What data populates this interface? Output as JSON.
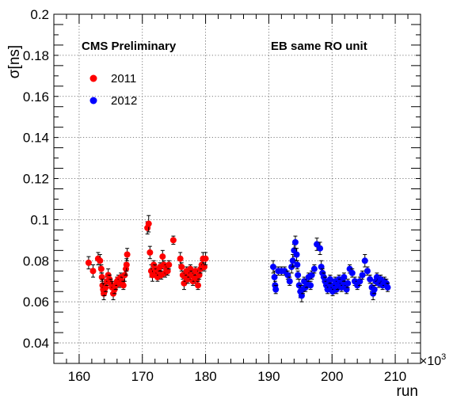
{
  "chart_data": {
    "type": "scatter",
    "title": "",
    "xlabel": "run",
    "ylabel": "σ[ns]",
    "x_multiplier_label": "×10",
    "x_multiplier_exp": "3",
    "xlim": [
      156,
      214
    ],
    "ylim": [
      0.03,
      0.2
    ],
    "x_ticks": [
      160,
      170,
      180,
      190,
      200,
      210
    ],
    "y_ticks": [
      0.04,
      0.06,
      0.08,
      0.1,
      0.12,
      0.14,
      0.16,
      0.18,
      0.2
    ],
    "x_tick_labels": [
      "160",
      "170",
      "180",
      "190",
      "200",
      "210"
    ],
    "y_tick_labels": [
      "0.04",
      "0.06",
      "0.08",
      "0.1",
      "0.12",
      "0.14",
      "0.16",
      "0.18",
      "0.2"
    ],
    "grid": true,
    "legend_position": "top-left",
    "annotations": [
      "CMS Preliminary",
      "EB same RO unit"
    ],
    "series": [
      {
        "name": "2011",
        "color": "#ff0000",
        "points": [
          [
            161.5,
            0.079,
            0.003
          ],
          [
            162.2,
            0.075,
            0.003
          ],
          [
            163.0,
            0.081,
            0.003
          ],
          [
            163.3,
            0.08,
            0.003
          ],
          [
            163.5,
            0.076,
            0.002
          ],
          [
            163.6,
            0.072,
            0.002
          ],
          [
            163.7,
            0.068,
            0.003
          ],
          [
            163.8,
            0.066,
            0.003
          ],
          [
            163.9,
            0.064,
            0.003
          ],
          [
            164.0,
            0.065,
            0.002
          ],
          [
            164.2,
            0.067,
            0.002
          ],
          [
            164.4,
            0.07,
            0.002
          ],
          [
            164.6,
            0.073,
            0.003
          ],
          [
            164.8,
            0.071,
            0.002
          ],
          [
            165.0,
            0.069,
            0.002
          ],
          [
            165.2,
            0.067,
            0.003
          ],
          [
            165.4,
            0.064,
            0.003
          ],
          [
            165.6,
            0.066,
            0.002
          ],
          [
            165.8,
            0.068,
            0.002
          ],
          [
            166.0,
            0.07,
            0.002
          ],
          [
            166.2,
            0.071,
            0.002
          ],
          [
            166.4,
            0.069,
            0.002
          ],
          [
            166.6,
            0.072,
            0.002
          ],
          [
            166.8,
            0.07,
            0.002
          ],
          [
            167.0,
            0.068,
            0.002
          ],
          [
            167.2,
            0.073,
            0.003
          ],
          [
            167.4,
            0.076,
            0.003
          ],
          [
            167.5,
            0.078,
            0.003
          ],
          [
            167.6,
            0.083,
            0.003
          ],
          [
            170.8,
            0.096,
            0.003
          ],
          [
            171.0,
            0.098,
            0.004
          ],
          [
            171.2,
            0.084,
            0.003
          ],
          [
            171.4,
            0.075,
            0.003
          ],
          [
            171.6,
            0.073,
            0.003
          ],
          [
            171.8,
            0.078,
            0.002
          ],
          [
            172.0,
            0.076,
            0.002
          ],
          [
            172.2,
            0.074,
            0.002
          ],
          [
            172.4,
            0.072,
            0.002
          ],
          [
            172.6,
            0.075,
            0.002
          ],
          [
            172.8,
            0.077,
            0.002
          ],
          [
            173.0,
            0.073,
            0.002
          ],
          [
            173.2,
            0.082,
            0.003
          ],
          [
            173.4,
            0.078,
            0.002
          ],
          [
            173.6,
            0.074,
            0.002
          ],
          [
            173.8,
            0.076,
            0.002
          ],
          [
            174.0,
            0.075,
            0.002
          ],
          [
            174.2,
            0.078,
            0.002
          ],
          [
            174.9,
            0.09,
            0.002
          ],
          [
            176.0,
            0.081,
            0.003
          ],
          [
            176.2,
            0.077,
            0.002
          ],
          [
            176.4,
            0.073,
            0.002
          ],
          [
            176.6,
            0.069,
            0.003
          ],
          [
            176.8,
            0.072,
            0.002
          ],
          [
            177.0,
            0.075,
            0.002
          ],
          [
            177.2,
            0.071,
            0.002
          ],
          [
            177.4,
            0.074,
            0.002
          ],
          [
            177.6,
            0.076,
            0.002
          ],
          [
            177.8,
            0.073,
            0.002
          ],
          [
            178.0,
            0.07,
            0.002
          ],
          [
            178.2,
            0.072,
            0.002
          ],
          [
            178.4,
            0.075,
            0.002
          ],
          [
            178.6,
            0.071,
            0.002
          ],
          [
            178.8,
            0.068,
            0.002
          ],
          [
            179.0,
            0.073,
            0.002
          ],
          [
            179.2,
            0.076,
            0.002
          ],
          [
            179.4,
            0.078,
            0.002
          ],
          [
            179.6,
            0.081,
            0.003
          ],
          [
            179.8,
            0.077,
            0.002
          ],
          [
            180.0,
            0.081,
            0.003
          ]
        ]
      },
      {
        "name": "2012",
        "color": "#0000ff",
        "points": [
          [
            190.7,
            0.077,
            0.003
          ],
          [
            190.9,
            0.072,
            0.003
          ],
          [
            191.0,
            0.068,
            0.002
          ],
          [
            191.1,
            0.066,
            0.002
          ],
          [
            191.5,
            0.075,
            0.002
          ],
          [
            192.0,
            0.075,
            0.002
          ],
          [
            192.5,
            0.075,
            0.002
          ],
          [
            193.0,
            0.073,
            0.002
          ],
          [
            193.3,
            0.07,
            0.002
          ],
          [
            193.6,
            0.077,
            0.003
          ],
          [
            193.8,
            0.08,
            0.003
          ],
          [
            194.0,
            0.085,
            0.003
          ],
          [
            194.2,
            0.089,
            0.003
          ],
          [
            194.4,
            0.083,
            0.003
          ],
          [
            194.5,
            0.078,
            0.002
          ],
          [
            194.6,
            0.073,
            0.002
          ],
          [
            194.8,
            0.068,
            0.003
          ],
          [
            195.0,
            0.065,
            0.003
          ],
          [
            195.2,
            0.063,
            0.003
          ],
          [
            195.4,
            0.066,
            0.002
          ],
          [
            195.6,
            0.07,
            0.002
          ],
          [
            195.8,
            0.067,
            0.002
          ],
          [
            196.0,
            0.069,
            0.002
          ],
          [
            196.3,
            0.072,
            0.002
          ],
          [
            196.6,
            0.068,
            0.002
          ],
          [
            196.8,
            0.073,
            0.002
          ],
          [
            197.2,
            0.076,
            0.002
          ],
          [
            197.6,
            0.088,
            0.003
          ],
          [
            198.1,
            0.086,
            0.003
          ],
          [
            198.3,
            0.077,
            0.003
          ],
          [
            198.5,
            0.074,
            0.002
          ],
          [
            198.7,
            0.072,
            0.002
          ],
          [
            198.9,
            0.07,
            0.002
          ],
          [
            199.1,
            0.068,
            0.002
          ],
          [
            199.3,
            0.066,
            0.002
          ],
          [
            199.5,
            0.069,
            0.002
          ],
          [
            199.7,
            0.071,
            0.002
          ],
          [
            199.9,
            0.067,
            0.002
          ],
          [
            200.1,
            0.065,
            0.002
          ],
          [
            200.3,
            0.068,
            0.002
          ],
          [
            200.5,
            0.07,
            0.002
          ],
          [
            200.7,
            0.066,
            0.002
          ],
          [
            200.9,
            0.068,
            0.002
          ],
          [
            201.1,
            0.071,
            0.002
          ],
          [
            201.3,
            0.069,
            0.002
          ],
          [
            201.5,
            0.067,
            0.002
          ],
          [
            201.7,
            0.07,
            0.002
          ],
          [
            201.9,
            0.072,
            0.002
          ],
          [
            202.1,
            0.068,
            0.002
          ],
          [
            202.3,
            0.066,
            0.002
          ],
          [
            202.5,
            0.069,
            0.002
          ],
          [
            202.8,
            0.076,
            0.002
          ],
          [
            203.2,
            0.074,
            0.002
          ],
          [
            203.6,
            0.07,
            0.002
          ],
          [
            204.0,
            0.068,
            0.002
          ],
          [
            204.4,
            0.07,
            0.002
          ],
          [
            204.8,
            0.073,
            0.002
          ],
          [
            205.2,
            0.08,
            0.003
          ],
          [
            205.6,
            0.075,
            0.002
          ],
          [
            206.0,
            0.071,
            0.002
          ],
          [
            206.3,
            0.067,
            0.002
          ],
          [
            206.5,
            0.064,
            0.003
          ],
          [
            206.7,
            0.066,
            0.002
          ],
          [
            206.9,
            0.07,
            0.002
          ],
          [
            207.1,
            0.072,
            0.002
          ],
          [
            207.4,
            0.069,
            0.002
          ],
          [
            207.7,
            0.071,
            0.002
          ],
          [
            208.0,
            0.068,
            0.002
          ],
          [
            208.3,
            0.07,
            0.002
          ],
          [
            208.6,
            0.069,
            0.002
          ],
          [
            208.8,
            0.067,
            0.002
          ]
        ]
      }
    ]
  }
}
